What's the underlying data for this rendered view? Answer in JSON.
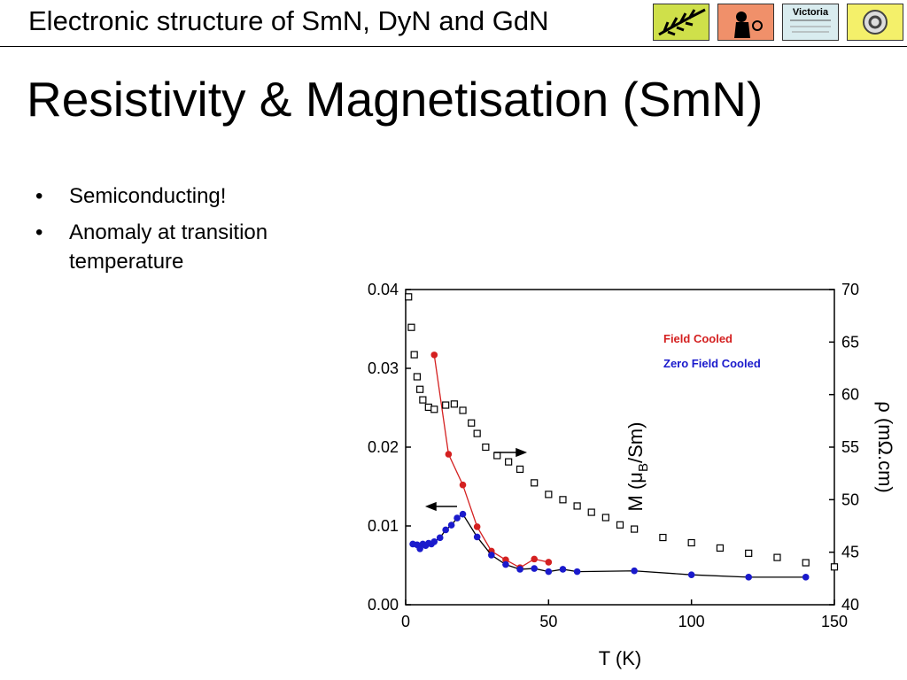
{
  "header": {
    "title": "Electronic structure of SmN, DyN and GdN",
    "logo_text": "Victoria"
  },
  "slide": {
    "title": "Resistivity & Magnetisation (SmN)",
    "bullets": [
      "Semiconducting!",
      "Anomaly at transition temperature"
    ]
  },
  "chart_data": {
    "type": "scatter",
    "xlabel": "T (K)",
    "ylabel_parts": [
      "M (μ",
      "B",
      "/Sm)"
    ],
    "y2label": "ρ (mΩ.cm)",
    "xlim": [
      0,
      150
    ],
    "xticks": [
      0,
      50,
      100,
      150
    ],
    "ylim": [
      0,
      0.04
    ],
    "yticks": [
      {
        "value": 0,
        "label": "0.00"
      },
      {
        "value": 0.01,
        "label": "0.01"
      },
      {
        "value": 0.02,
        "label": "0.02"
      },
      {
        "value": 0.03,
        "label": "0.03"
      },
      {
        "value": 0.04,
        "label": "0.04"
      }
    ],
    "y2lim": [
      40,
      70
    ],
    "y2ticks": [
      40,
      45,
      50,
      55,
      60,
      65,
      70
    ],
    "legend": "upper right",
    "series": [
      {
        "name": "Field Cooled",
        "color": "#d42020",
        "line_color": "#d42020",
        "marker": "circle",
        "x": [
          10,
          15,
          20,
          25,
          30,
          35,
          40,
          45,
          50
        ],
        "values": [
          0.0317,
          0.0191,
          0.0152,
          0.0099,
          0.0068,
          0.0057,
          0.0047,
          0.0058,
          0.0054
        ]
      },
      {
        "name": "Zero Field Cooled",
        "color": "#1a1acc",
        "line_color": "#000000",
        "marker": "circle",
        "x": [
          2.5,
          4,
          5,
          6,
          7,
          8,
          9,
          10,
          12,
          14,
          16,
          18,
          20,
          25,
          30,
          35,
          40,
          45,
          50,
          55,
          60,
          80,
          100,
          120,
          140
        ],
        "values": [
          0.0077,
          0.0076,
          0.0071,
          0.0077,
          0.0075,
          0.0078,
          0.0077,
          0.008,
          0.0085,
          0.0095,
          0.0101,
          0.011,
          0.0115,
          0.0086,
          0.0063,
          0.0051,
          0.0045,
          0.0046,
          0.0042,
          0.0045,
          0.0042,
          0.0043,
          0.0038,
          0.0035,
          0.0035
        ]
      },
      {
        "color": "#000000",
        "marker": "open-square",
        "axis": "y2",
        "x": [
          1,
          2,
          3,
          4,
          5,
          6,
          8,
          10,
          14,
          17,
          20,
          23,
          25,
          28,
          32,
          36,
          40,
          45,
          50,
          55,
          60,
          65,
          70,
          75,
          80,
          90,
          100,
          110,
          120,
          130,
          140,
          150
        ],
        "values": [
          69.3,
          66.4,
          63.8,
          61.7,
          60.5,
          59.5,
          58.8,
          58.6,
          59.0,
          59.1,
          58.5,
          57.3,
          56.3,
          55.0,
          54.2,
          53.6,
          52.9,
          51.6,
          50.5,
          50.0,
          49.4,
          48.8,
          48.3,
          47.6,
          47.2,
          46.4,
          45.9,
          45.4,
          44.9,
          44.5,
          44.0,
          43.6
        ]
      }
    ]
  }
}
